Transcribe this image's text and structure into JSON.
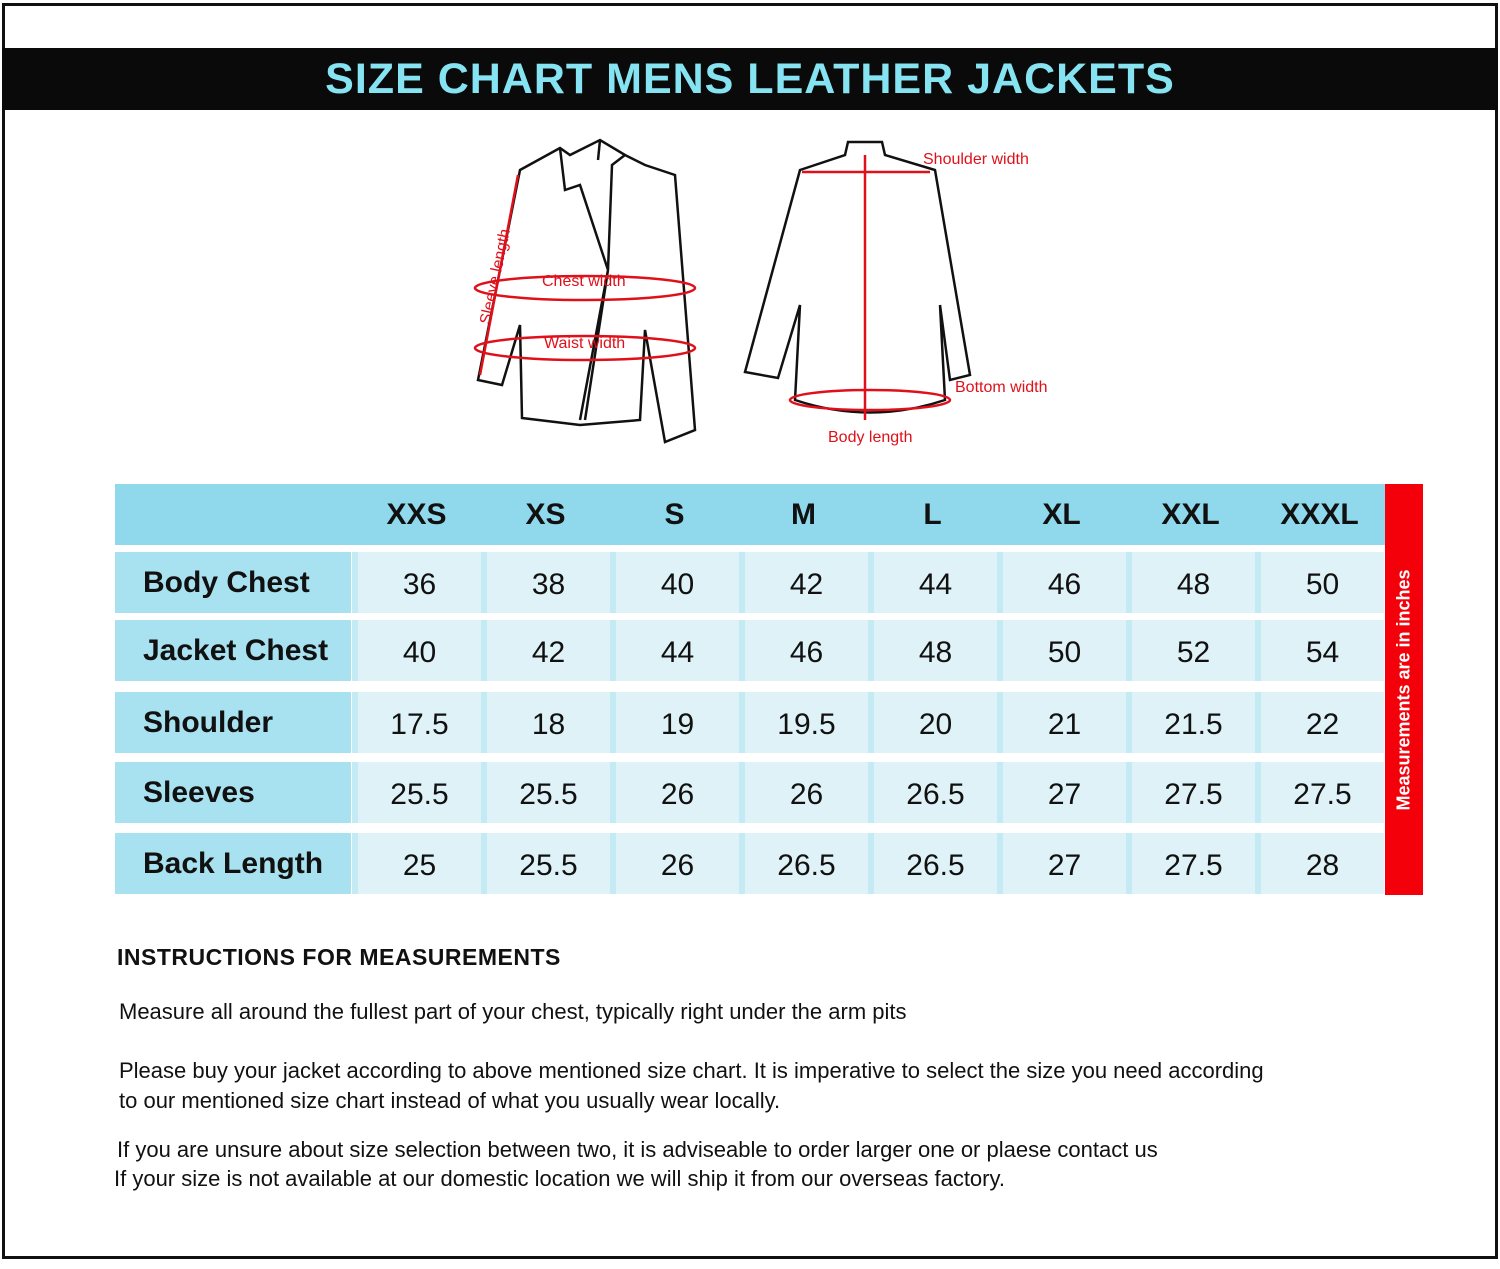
{
  "title": "SIZE CHART MENS LEATHER JACKETS",
  "diagram": {
    "labels": {
      "sleeve_length": "Sleeve length",
      "chest_width": "Chest width",
      "waist_width": "Waist width",
      "shoulder_width": "Shoulder width",
      "bottom_width": "Bottom width",
      "body_length": "Body length"
    },
    "line_color": "#111111",
    "measure_color": "#e0101a"
  },
  "chart_data": {
    "type": "table",
    "unit_note": "Measurements  are in inches",
    "columns": [
      "XXS",
      "XS",
      "S",
      "M",
      "L",
      "XL",
      "XXL",
      "XXXL"
    ],
    "rows": [
      {
        "label": "Body Chest",
        "values": [
          "36",
          "38",
          "40",
          "42",
          "44",
          "46",
          "48",
          "50"
        ]
      },
      {
        "label": "Jacket Chest",
        "values": [
          "40",
          "42",
          "44",
          "46",
          "48",
          "50",
          "52",
          "54"
        ]
      },
      {
        "label": "Shoulder",
        "values": [
          "17.5",
          "18",
          "19",
          "19.5",
          "20",
          "21",
          "21.5",
          "22"
        ]
      },
      {
        "label": "Sleeves",
        "values": [
          "25.5",
          "25.5",
          "26",
          "26",
          "26.5",
          "27",
          "27.5",
          "27.5"
        ]
      },
      {
        "label": "Back Length",
        "values": [
          "25",
          "25.5",
          "26",
          "26.5",
          "26.5",
          "27",
          "27.5",
          "28"
        ]
      }
    ]
  },
  "colors": {
    "title": "#86e3f1",
    "header": "#90d9ec",
    "label_cell": "#a8e1ef",
    "cell": "#dff2f7",
    "note_bar": "#f4000a"
  },
  "instructions": {
    "heading": "INSTRUCTIONS FOR MEASUREMENTS",
    "p1": "Measure all around the fullest part of your chest, typically right under the arm pits",
    "p2a": "Please buy your jacket according to above mentioned size chart. It is imperative to select the size you need according",
    "p2b": "to our mentioned size chart instead of what you  usually wear locally.",
    "p3": "If you are unsure about size selection between two, it is adviseable to order larger one or plaese contact us",
    "p4": "If your size is not available at our domestic location we will ship it from our overseas factory."
  }
}
